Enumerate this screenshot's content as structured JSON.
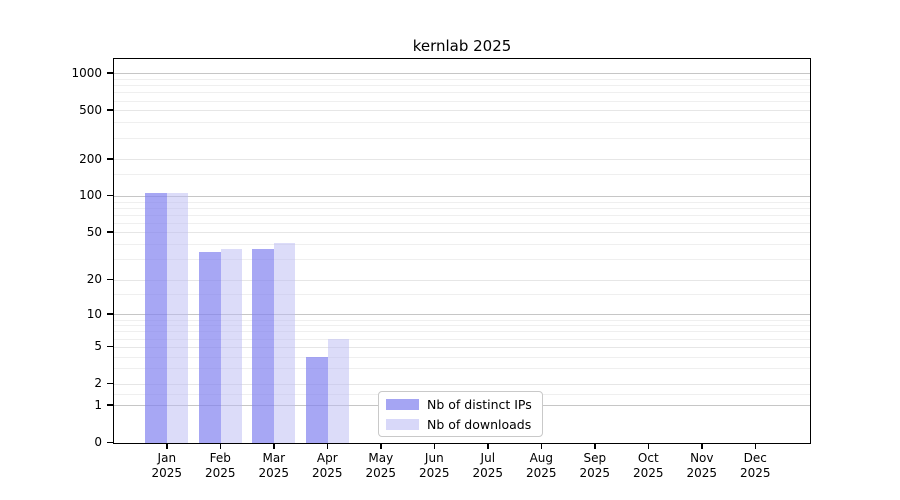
{
  "header": {
    "title": "kernlab 2025"
  },
  "chart_data": {
    "type": "bar",
    "title": "kernlab 2025",
    "categories": [
      "Jan",
      "Feb",
      "Mar",
      "Apr",
      "May",
      "Jun",
      "Jul",
      "Aug",
      "Sep",
      "Oct",
      "Nov",
      "Dec"
    ],
    "x_year_label": "2025",
    "series": [
      {
        "name": "Nb of distinct IPs",
        "values": [
          106,
          35,
          37,
          4,
          0,
          0,
          0,
          0,
          0,
          0,
          0,
          0
        ],
        "fill": "rgba(130,130,240,0.70)",
        "legend_color": "#a5a5f3"
      },
      {
        "name": "Nb of downloads",
        "values": [
          106,
          37,
          41,
          6,
          0,
          0,
          0,
          0,
          0,
          0,
          0,
          0
        ],
        "fill": "rgba(185,185,244,0.50)",
        "legend_color": "#d8d8f9"
      }
    ],
    "y_ticks": [
      0,
      1,
      2,
      5,
      10,
      20,
      50,
      100,
      200,
      500,
      1000
    ],
    "y_minor_gridlines": [
      1.5,
      3,
      4,
      6,
      7,
      8,
      9,
      15,
      30,
      40,
      60,
      70,
      80,
      90,
      150,
      300,
      400,
      600,
      700,
      800,
      900
    ],
    "y_scale": "log10(1+x)",
    "ylim": [
      0,
      1330
    ],
    "grid": true,
    "legend_position": "lower-center",
    "colors": {
      "major_gridline": "#c6c6c6",
      "labeled_gridline": "#e6e6e6",
      "minor_gridline": "#efefef",
      "axis": "#000000"
    }
  }
}
